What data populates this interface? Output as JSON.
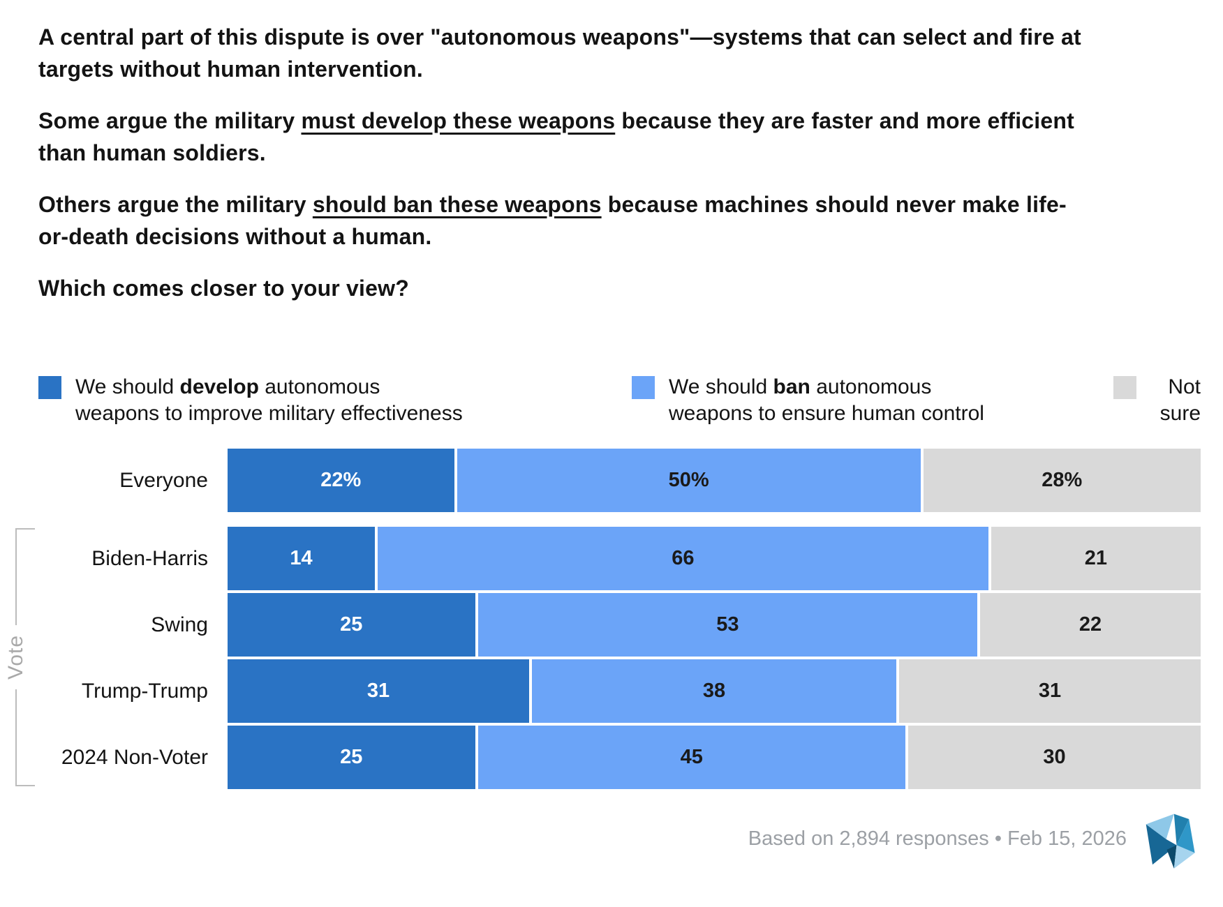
{
  "intro": {
    "p1": "A central part of this dispute is over \"autonomous weapons\"—systems that can select and fire at targets without human intervention.",
    "p2_prefix": "Some argue the military ",
    "p2_underline": "must develop these weapons",
    "p2_suffix": " because they are faster and more efficient than human soldiers.",
    "p3_prefix": "Others argue the military ",
    "p3_underline": "should ban these weapons",
    "p3_suffix": " because machines should never make life-or-death decisions without a human.",
    "question": "Which comes closer to your view?"
  },
  "legend": {
    "develop": {
      "prefix": "We should ",
      "bold": "develop",
      "suffix": " autonomous weapons to improve military effectiveness",
      "color": "#2a73c4"
    },
    "ban": {
      "prefix": "We should ",
      "bold": "ban",
      "suffix": " autonomous weapons to ensure human control",
      "color": "#6ba4f8"
    },
    "notsure": {
      "label": "Not sure",
      "color": "#d9d9d9"
    }
  },
  "chart_data": {
    "type": "bar",
    "stacked": true,
    "orientation": "horizontal",
    "title": "Which comes closer to your view?",
    "categories": [
      "Everyone",
      "Biden-Harris",
      "Swing",
      "Trump-Trump",
      "2024 Non-Voter"
    ],
    "series": [
      {
        "name": "We should develop autonomous weapons to improve military effectiveness",
        "color": "#2a73c4",
        "values": [
          22,
          14,
          25,
          31,
          25
        ]
      },
      {
        "name": "We should ban autonomous weapons to ensure human control",
        "color": "#6ba4f8",
        "values": [
          50,
          66,
          53,
          38,
          45
        ]
      },
      {
        "name": "Not sure",
        "color": "#d9d9d9",
        "values": [
          28,
          21,
          22,
          31,
          30
        ]
      }
    ],
    "value_labels": [
      [
        "22%",
        "50%",
        "28%"
      ],
      [
        "14",
        "66",
        "21"
      ],
      [
        "25",
        "53",
        "22"
      ],
      [
        "31",
        "38",
        "31"
      ],
      [
        "25",
        "45",
        "30"
      ]
    ],
    "group_label": "Vote",
    "group_rows": [
      1,
      2,
      3,
      4
    ],
    "xlim": [
      0,
      100
    ],
    "legend_position": "top",
    "grid": false
  },
  "footer": {
    "note": "Based on 2,894 responses • Feb 15, 2026",
    "logo": "verasight-logo",
    "logo_colors": [
      "#8ec8e8",
      "#2180ae",
      "#176795",
      "#2f97c8",
      "#0d4a6b",
      "#a6d4ee"
    ]
  }
}
